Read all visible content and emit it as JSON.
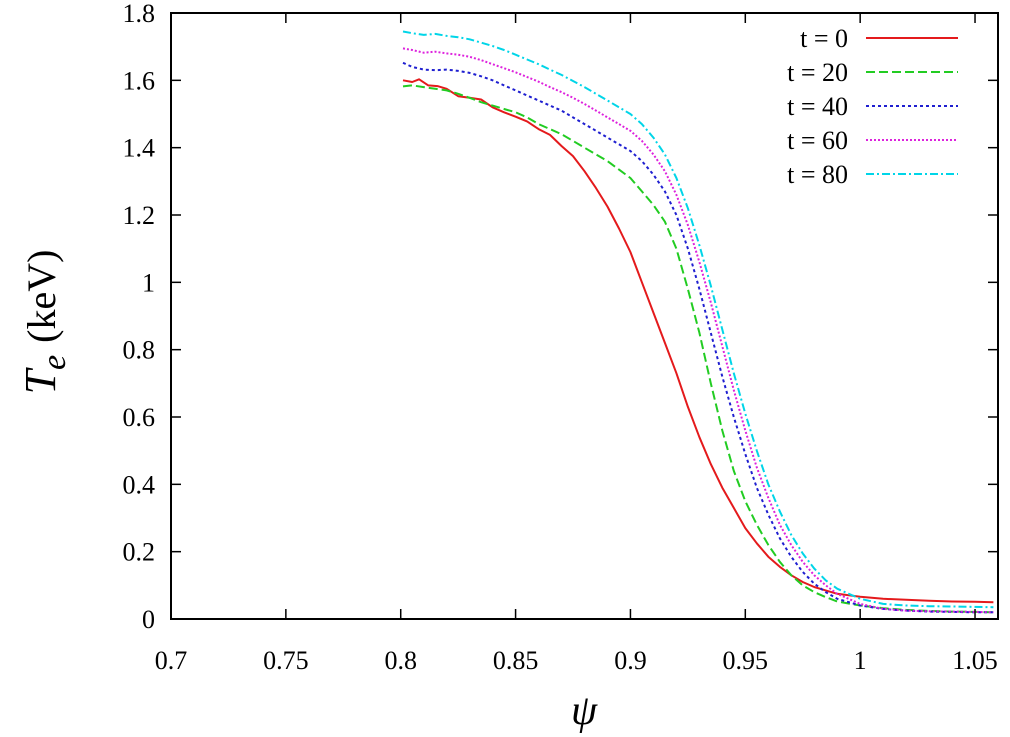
{
  "chart_data": {
    "type": "line",
    "title": "",
    "xlabel": "ψ",
    "ylabel": {
      "symbol": "T",
      "subscript": "e",
      "unit": "(keV)"
    },
    "xlim": [
      0.7,
      1.06
    ],
    "ylim": [
      0,
      1.8
    ],
    "x_ticks": [
      "0.7",
      "0.75",
      "0.8",
      "0.85",
      "0.9",
      "0.95",
      "1",
      "1.05"
    ],
    "x_tick_values": [
      0.7,
      0.75,
      0.8,
      0.85,
      0.9,
      0.95,
      1.0,
      1.05
    ],
    "y_ticks": [
      "0",
      "0.2",
      "0.4",
      "0.6",
      "0.8",
      "1",
      "1.2",
      "1.4",
      "1.6",
      "1.8"
    ],
    "y_tick_values": [
      0,
      0.2,
      0.4,
      0.6,
      0.8,
      1.0,
      1.2,
      1.4,
      1.6,
      1.8
    ],
    "grid": false,
    "legend_position": "top-right",
    "series": [
      {
        "name": "t = 0",
        "color": "#e41a1c",
        "dash": "solid",
        "x": [
          0.801,
          0.805,
          0.808,
          0.812,
          0.816,
          0.82,
          0.825,
          0.83,
          0.835,
          0.84,
          0.845,
          0.85,
          0.855,
          0.86,
          0.865,
          0.87,
          0.875,
          0.88,
          0.885,
          0.89,
          0.895,
          0.9,
          0.905,
          0.91,
          0.915,
          0.92,
          0.925,
          0.93,
          0.935,
          0.94,
          0.945,
          0.95,
          0.955,
          0.96,
          0.965,
          0.97,
          0.975,
          0.98,
          0.985,
          0.99,
          1.0,
          1.01,
          1.02,
          1.03,
          1.04,
          1.05,
          1.058
        ],
        "y": [
          1.6,
          1.595,
          1.603,
          1.585,
          1.583,
          1.575,
          1.553,
          1.548,
          1.543,
          1.52,
          1.505,
          1.492,
          1.478,
          1.455,
          1.438,
          1.405,
          1.375,
          1.33,
          1.28,
          1.225,
          1.16,
          1.09,
          1.0,
          0.91,
          0.82,
          0.73,
          0.63,
          0.54,
          0.46,
          0.39,
          0.33,
          0.27,
          0.225,
          0.185,
          0.155,
          0.13,
          0.11,
          0.095,
          0.085,
          0.075,
          0.066,
          0.06,
          0.057,
          0.054,
          0.052,
          0.051,
          0.05
        ]
      },
      {
        "name": "t = 20",
        "color": "#22cc22",
        "dash": "dashed",
        "x": [
          0.801,
          0.805,
          0.81,
          0.815,
          0.82,
          0.825,
          0.83,
          0.835,
          0.84,
          0.845,
          0.85,
          0.855,
          0.86,
          0.865,
          0.87,
          0.875,
          0.88,
          0.885,
          0.89,
          0.895,
          0.9,
          0.905,
          0.91,
          0.915,
          0.92,
          0.925,
          0.93,
          0.935,
          0.94,
          0.945,
          0.95,
          0.955,
          0.96,
          0.965,
          0.97,
          0.975,
          0.98,
          0.985,
          0.99,
          1.0,
          1.01,
          1.02,
          1.03,
          1.04,
          1.05,
          1.058
        ],
        "y": [
          1.582,
          1.585,
          1.58,
          1.575,
          1.57,
          1.56,
          1.548,
          1.535,
          1.525,
          1.515,
          1.505,
          1.49,
          1.47,
          1.455,
          1.44,
          1.42,
          1.4,
          1.38,
          1.36,
          1.335,
          1.31,
          1.27,
          1.23,
          1.18,
          1.1,
          0.98,
          0.85,
          0.7,
          0.56,
          0.44,
          0.35,
          0.28,
          0.22,
          0.17,
          0.13,
          0.1,
          0.08,
          0.065,
          0.052,
          0.04,
          0.032,
          0.027,
          0.024,
          0.022,
          0.021,
          0.02
        ]
      },
      {
        "name": "t = 40",
        "color": "#1f1fd0",
        "dash": "dotted",
        "x": [
          0.801,
          0.805,
          0.81,
          0.815,
          0.82,
          0.825,
          0.83,
          0.835,
          0.84,
          0.845,
          0.85,
          0.855,
          0.86,
          0.865,
          0.87,
          0.875,
          0.88,
          0.885,
          0.89,
          0.895,
          0.9,
          0.905,
          0.91,
          0.915,
          0.92,
          0.925,
          0.93,
          0.935,
          0.94,
          0.945,
          0.95,
          0.955,
          0.96,
          0.965,
          0.97,
          0.975,
          0.98,
          0.985,
          0.99,
          1.0,
          1.01,
          1.02,
          1.03,
          1.04,
          1.05,
          1.058
        ],
        "y": [
          1.652,
          1.64,
          1.632,
          1.63,
          1.632,
          1.628,
          1.622,
          1.612,
          1.6,
          1.585,
          1.57,
          1.555,
          1.54,
          1.525,
          1.51,
          1.49,
          1.47,
          1.45,
          1.43,
          1.41,
          1.39,
          1.36,
          1.32,
          1.27,
          1.2,
          1.1,
          0.98,
          0.85,
          0.72,
          0.6,
          0.49,
          0.39,
          0.31,
          0.24,
          0.185,
          0.14,
          0.105,
          0.08,
          0.06,
          0.04,
          0.03,
          0.025,
          0.022,
          0.021,
          0.02,
          0.02
        ]
      },
      {
        "name": "t = 60",
        "color": "#dd22dd",
        "dash": "dotted-fine",
        "x": [
          0.801,
          0.805,
          0.81,
          0.815,
          0.82,
          0.825,
          0.83,
          0.835,
          0.84,
          0.845,
          0.85,
          0.855,
          0.86,
          0.865,
          0.87,
          0.875,
          0.88,
          0.885,
          0.89,
          0.895,
          0.9,
          0.905,
          0.91,
          0.915,
          0.92,
          0.925,
          0.93,
          0.935,
          0.94,
          0.945,
          0.95,
          0.955,
          0.96,
          0.965,
          0.97,
          0.975,
          0.98,
          0.985,
          0.99,
          1.0,
          1.01,
          1.02,
          1.03,
          1.04,
          1.05,
          1.058
        ],
        "y": [
          1.695,
          1.69,
          1.682,
          1.685,
          1.68,
          1.676,
          1.67,
          1.66,
          1.648,
          1.636,
          1.624,
          1.61,
          1.596,
          1.58,
          1.565,
          1.548,
          1.53,
          1.51,
          1.49,
          1.47,
          1.45,
          1.42,
          1.38,
          1.33,
          1.26,
          1.17,
          1.06,
          0.94,
          0.81,
          0.68,
          0.56,
          0.45,
          0.36,
          0.28,
          0.22,
          0.17,
          0.13,
          0.1,
          0.075,
          0.045,
          0.03,
          0.025,
          0.023,
          0.022,
          0.021,
          0.02
        ]
      },
      {
        "name": "t = 80",
        "color": "#00d5e8",
        "dash": "dash-dot",
        "x": [
          0.801,
          0.805,
          0.81,
          0.815,
          0.82,
          0.825,
          0.83,
          0.835,
          0.84,
          0.845,
          0.85,
          0.855,
          0.86,
          0.865,
          0.87,
          0.875,
          0.88,
          0.885,
          0.89,
          0.895,
          0.9,
          0.905,
          0.91,
          0.915,
          0.92,
          0.925,
          0.93,
          0.935,
          0.94,
          0.945,
          0.95,
          0.955,
          0.96,
          0.965,
          0.97,
          0.975,
          0.98,
          0.985,
          0.99,
          1.0,
          1.01,
          1.02,
          1.03,
          1.04,
          1.05,
          1.058
        ],
        "y": [
          1.745,
          1.74,
          1.735,
          1.738,
          1.732,
          1.728,
          1.722,
          1.712,
          1.702,
          1.69,
          1.676,
          1.662,
          1.648,
          1.632,
          1.616,
          1.598,
          1.58,
          1.56,
          1.54,
          1.52,
          1.5,
          1.47,
          1.43,
          1.38,
          1.31,
          1.22,
          1.11,
          0.99,
          0.86,
          0.73,
          0.61,
          0.5,
          0.4,
          0.32,
          0.25,
          0.195,
          0.15,
          0.115,
          0.09,
          0.06,
          0.045,
          0.04,
          0.038,
          0.037,
          0.036,
          0.035
        ]
      }
    ]
  }
}
